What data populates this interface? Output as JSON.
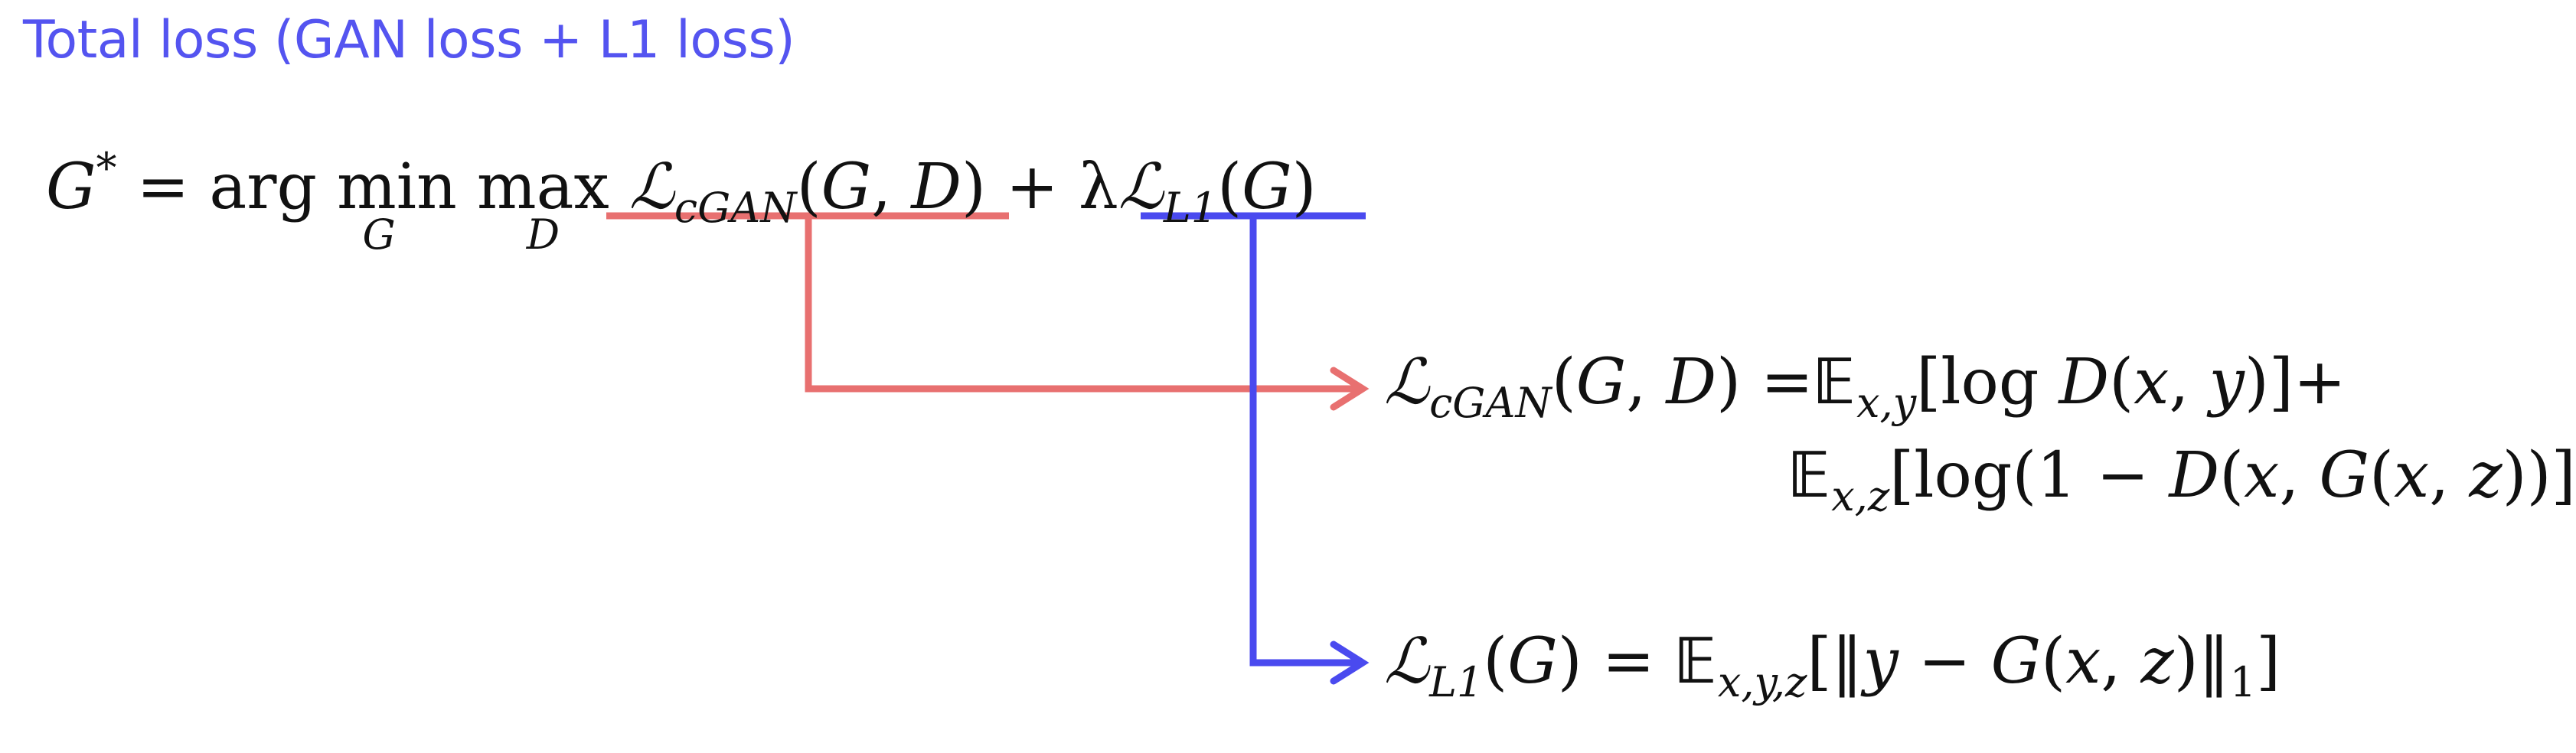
{
  "title": "Total loss (GAN loss + L1 loss)",
  "colors": {
    "title": "#5454f0",
    "gan_connector": "#e87070",
    "l1_connector": "#4a4aef",
    "equation_text": "#111111"
  },
  "main_equation": {
    "lhs": "G*",
    "equals": "=",
    "argmin": "arg min",
    "argmin_under": "G",
    "max": "max",
    "max_under": "D",
    "gan_term": "ℒcGAN(G, D)",
    "plus": "+",
    "lambda": "λ",
    "l1_term": "ℒL1(G)"
  },
  "cgan_equation": {
    "line1": "ℒcGAN(G, D) =𝔼x,y[log D(x, y)]+",
    "line2": "𝔼x,z[log(1 − D(x, G(x, z))]"
  },
  "l1_equation": {
    "text": "ℒL1(G) = 𝔼x,y,z[‖y − G(x, z)‖1]"
  }
}
